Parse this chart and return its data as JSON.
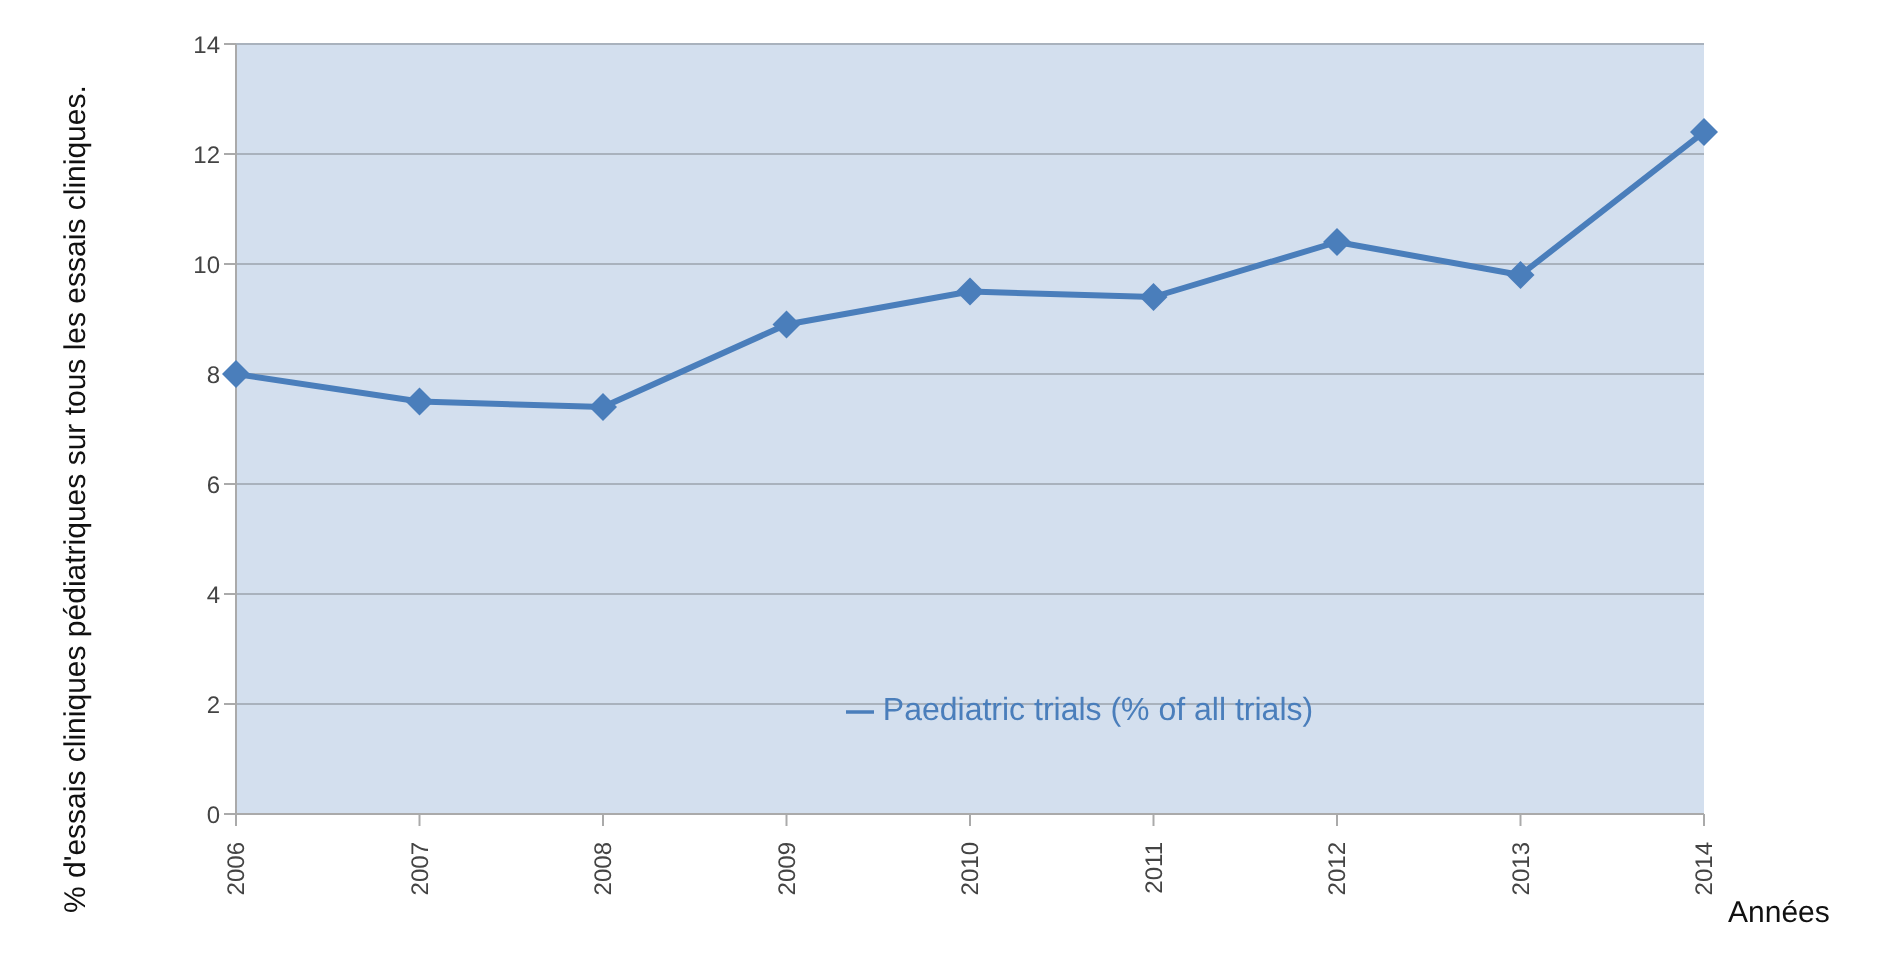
{
  "chart_data": {
    "type": "line",
    "ylabel": "% d'essais cliniques pédiatriques sur tous les essais cliniques.",
    "xlabel": "Années",
    "categories": [
      "2006",
      "2007",
      "2008",
      "2009",
      "2010",
      "2011",
      "2012",
      "2013",
      "2014"
    ],
    "series": [
      {
        "name": "Paediatric trials (% of all trials)",
        "color": "#4a7ebb",
        "values": [
          8.0,
          7.5,
          7.4,
          8.9,
          9.5,
          9.4,
          10.4,
          9.8,
          12.4
        ]
      }
    ],
    "ylim": [
      0,
      14
    ],
    "yticks": [
      0,
      2,
      4,
      6,
      8,
      10,
      12,
      14
    ],
    "grid": "y",
    "legend": "bottom",
    "marker": "diamond"
  }
}
